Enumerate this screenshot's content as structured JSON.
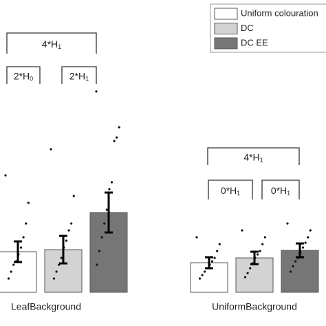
{
  "chart_data": {
    "type": "bar",
    "categories": [
      "LeafBackground",
      "UniformBackground"
    ],
    "ylim": [
      0,
      300
    ],
    "series": [
      {
        "name": "Uniform colouration",
        "color": "#ffffff",
        "values": [
          59,
          43
        ],
        "errors": [
          15,
          8
        ],
        "points": [
          [
            170,
            130,
            100,
            80,
            65,
            55,
            45,
            40,
            30,
            20
          ],
          [
            80,
            70,
            60,
            50,
            45,
            40,
            35,
            30,
            25,
            20
          ]
        ]
      },
      {
        "name": "DC",
        "color": "#d3d3d3",
        "values": [
          62,
          50
        ],
        "errors": [
          20,
          9
        ],
        "points": [
          [
            208,
            140,
            100,
            90,
            75,
            65,
            50,
            40,
            30,
            20
          ],
          [
            90,
            80,
            70,
            60,
            55,
            50,
            42,
            35,
            28,
            22
          ]
        ]
      },
      {
        "name": "DC EE",
        "color": "#767676",
        "values": [
          116,
          61
        ],
        "errors": [
          29,
          10
        ],
        "points": [
          [
            292,
            240,
            225,
            220,
            160,
            150,
            120,
            100,
            80,
            60,
            40
          ],
          [
            100,
            90,
            80,
            72,
            65,
            58,
            50,
            45,
            38,
            30
          ]
        ]
      }
    ],
    "annotations": [
      {
        "text": "4*H",
        "sub": "1"
      },
      {
        "text": "2*H",
        "sub": "0"
      },
      {
        "text": "2*H",
        "sub": "1"
      },
      {
        "text": "4*H",
        "sub": "1"
      },
      {
        "text": "0*H",
        "sub": "1"
      },
      {
        "text": "0*H",
        "sub": "1"
      }
    ],
    "legend": "upper right"
  }
}
